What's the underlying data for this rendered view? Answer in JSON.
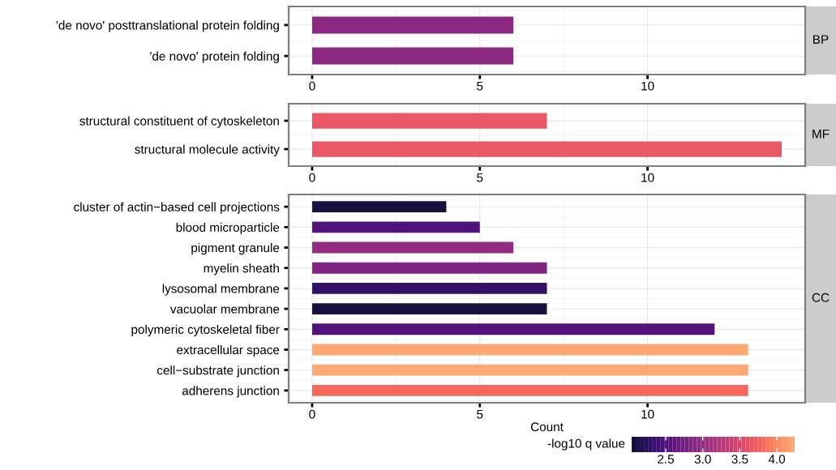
{
  "chart_data": [
    {
      "type": "bar",
      "orientation": "horizontal",
      "y2label": "BP",
      "categories": [
        "'de novo' posttranslational protein folding",
        "'de novo' protein folding"
      ],
      "values": [
        6,
        6
      ],
      "colors": [
        "#8b2880",
        "#8b2880"
      ],
      "xlim": [
        -0.7,
        14.7
      ],
      "xticks": [
        0,
        5,
        10
      ],
      "grid": true
    },
    {
      "type": "bar",
      "orientation": "horizontal",
      "y2label": "MF",
      "categories": [
        "structural constituent of cytoskeleton",
        "structural molecule activity"
      ],
      "values": [
        7,
        14
      ],
      "colors": [
        "#e95864",
        "#e95864"
      ],
      "xlim": [
        -0.7,
        14.7
      ],
      "xticks": [
        0,
        5,
        10
      ],
      "grid": true
    },
    {
      "type": "bar",
      "orientation": "horizontal",
      "y2label": "CC",
      "xlabel": "Count",
      "clabel": "-log10 q value",
      "categories": [
        "cluster of actin−based cell projections",
        "blood microparticle",
        "pigment granule",
        "myelin sheath",
        "lysosomal membrane",
        "vacuolar membrane",
        "polymeric cytoskeletal fiber",
        "extracellular space",
        "cell−substrate junction",
        "adherens junction"
      ],
      "values": [
        4,
        5,
        6,
        7,
        7,
        7,
        12,
        13,
        13,
        13
      ],
      "cvalues": [
        2.1,
        2.5,
        3.0,
        2.85,
        2.3,
        2.1,
        2.5,
        4.2,
        4.2,
        3.8
      ],
      "clim": [
        2.04,
        4.24
      ],
      "cticks": [
        2.5,
        {
          "value": 3.0,
          "label": "3.0"
        },
        3.5,
        {
          "value": 4.0,
          "label": "4.0"
        }
      ],
      "xlim": [
        -0.7,
        14.7
      ],
      "xticks": [
        0,
        5,
        10
      ],
      "grid": true
    }
  ]
}
